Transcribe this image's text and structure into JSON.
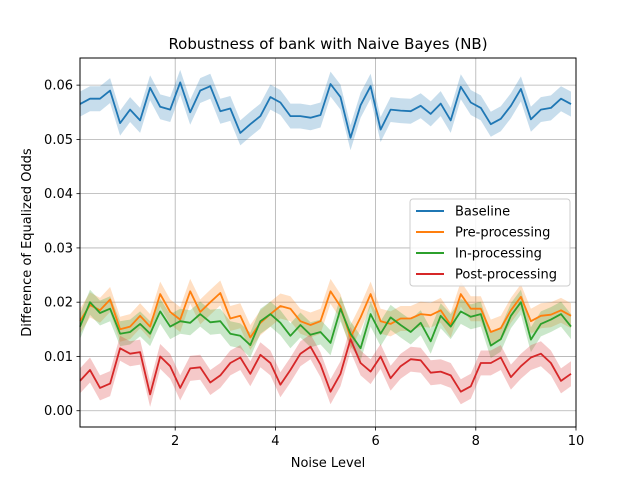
{
  "chart_data": {
    "type": "line",
    "title": "Robustness of bank with Naive Bayes (NB)",
    "xlabel": "Noise Level",
    "ylabel": "Difference of Equalized Odds",
    "xlim": [
      0.1,
      10
    ],
    "ylim": [
      -0.003,
      0.065
    ],
    "xticks": [
      2,
      4,
      6,
      8,
      10
    ],
    "xtick_labels": [
      "2",
      "4",
      "6",
      "8",
      "10"
    ],
    "yticks": [
      0.0,
      0.01,
      0.02,
      0.03,
      0.04,
      0.05,
      0.06
    ],
    "ytick_labels": [
      "0.00",
      "0.01",
      "0.02",
      "0.03",
      "0.04",
      "0.05",
      "0.06"
    ],
    "grid": true,
    "legend_position": "center-right",
    "band_halfwidth": 0.0023,
    "x": [
      0.1,
      0.3,
      0.5,
      0.7,
      0.9,
      1.1,
      1.3,
      1.5,
      1.7,
      1.9,
      2.1,
      2.3,
      2.5,
      2.7,
      2.9,
      3.1,
      3.3,
      3.5,
      3.7,
      3.9,
      4.1,
      4.3,
      4.5,
      4.7,
      4.9,
      5.1,
      5.3,
      5.5,
      5.7,
      5.9,
      6.1,
      6.3,
      6.5,
      6.7,
      6.9,
      7.1,
      7.3,
      7.5,
      7.7,
      7.9,
      8.1,
      8.3,
      8.5,
      8.7,
      8.9,
      9.1,
      9.3,
      9.5,
      9.7,
      9.9
    ],
    "series": [
      {
        "name": "Baseline",
        "color": "#1f77b4",
        "values": [
          0.0565,
          0.0575,
          0.0575,
          0.059,
          0.053,
          0.0555,
          0.0535,
          0.0595,
          0.056,
          0.0555,
          0.0605,
          0.055,
          0.059,
          0.0598,
          0.0552,
          0.0557,
          0.0512,
          0.0528,
          0.0543,
          0.0578,
          0.0568,
          0.0543,
          0.0543,
          0.054,
          0.0545,
          0.0602,
          0.0578,
          0.0503,
          0.0563,
          0.0598,
          0.0518,
          0.0555,
          0.0553,
          0.0552,
          0.0562,
          0.0547,
          0.0566,
          0.0535,
          0.0597,
          0.0568,
          0.0558,
          0.0528,
          0.0538,
          0.0562,
          0.0593,
          0.0537,
          0.0555,
          0.0558,
          0.0575,
          0.0565
        ]
      },
      {
        "name": "Pre-processing",
        "color": "#ff7f0e",
        "values": [
          0.0165,
          0.0195,
          0.0185,
          0.0205,
          0.015,
          0.0155,
          0.0175,
          0.0155,
          0.0215,
          0.0182,
          0.0168,
          0.022,
          0.0182,
          0.02,
          0.0217,
          0.017,
          0.0175,
          0.0135,
          0.0162,
          0.0178,
          0.0193,
          0.0188,
          0.0165,
          0.0158,
          0.0165,
          0.022,
          0.0192,
          0.0135,
          0.0172,
          0.0215,
          0.0165,
          0.016,
          0.017,
          0.017,
          0.0178,
          0.0176,
          0.0185,
          0.0158,
          0.0215,
          0.0188,
          0.0188,
          0.0145,
          0.0152,
          0.0185,
          0.021,
          0.0165,
          0.0175,
          0.0177,
          0.0185,
          0.0175
        ]
      },
      {
        "name": "In-processing",
        "color": "#2ca02c",
        "values": [
          0.0155,
          0.02,
          0.018,
          0.0188,
          0.0142,
          0.0145,
          0.016,
          0.0142,
          0.0183,
          0.0155,
          0.0165,
          0.0162,
          0.0178,
          0.0163,
          0.0165,
          0.0142,
          0.0138,
          0.0121,
          0.0165,
          0.0178,
          0.0162,
          0.0138,
          0.0158,
          0.014,
          0.0145,
          0.0125,
          0.0188,
          0.0142,
          0.0115,
          0.0178,
          0.0142,
          0.0172,
          0.0158,
          0.0145,
          0.0162,
          0.0128,
          0.0175,
          0.0155,
          0.0183,
          0.0173,
          0.0178,
          0.012,
          0.0132,
          0.0175,
          0.02,
          0.0131,
          0.016,
          0.0168,
          0.0178,
          0.0155
        ]
      },
      {
        "name": "Post-processing",
        "color": "#d62728",
        "values": [
          0.0055,
          0.0075,
          0.0042,
          0.005,
          0.0115,
          0.0105,
          0.0108,
          0.003,
          0.01,
          0.0082,
          0.0042,
          0.0078,
          0.008,
          0.0052,
          0.0065,
          0.0088,
          0.0098,
          0.0068,
          0.0103,
          0.0088,
          0.0048,
          0.0075,
          0.0105,
          0.0118,
          0.0085,
          0.0035,
          0.0068,
          0.0132,
          0.0088,
          0.0072,
          0.01,
          0.006,
          0.0082,
          0.0095,
          0.0093,
          0.007,
          0.0072,
          0.0065,
          0.0035,
          0.0045,
          0.0088,
          0.0088,
          0.0098,
          0.0062,
          0.0082,
          0.0098,
          0.0105,
          0.0088,
          0.0055,
          0.0068
        ]
      }
    ]
  }
}
